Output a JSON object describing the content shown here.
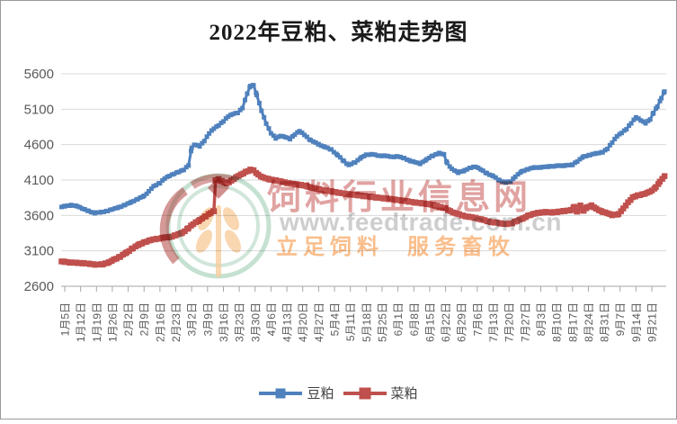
{
  "title": "2022年豆粕、菜粕走势图",
  "watermark": {
    "line1": "饲料行业信息网",
    "line2": "www.feedtrade.com.cn",
    "line3_left": "立足饲料",
    "line3_right": "服务畜牧"
  },
  "colors": {
    "soybean_meal": "#4F81BD",
    "rapeseed_meal": "#C0504D",
    "gridline": "#D9D9D9",
    "axis": "#A6A6A6",
    "axis_text": "#595959",
    "title_text": "#1a1a1a"
  },
  "chart_data": {
    "type": "line",
    "title": "2022年豆粕、菜粕走势图",
    "ylabel": "",
    "xlabel": "",
    "ylim": [
      2600,
      5600
    ],
    "y_ticks": [
      2600,
      3100,
      3600,
      4100,
      4600,
      5100,
      5600
    ],
    "grid": "horizontal",
    "legend_position": "bottom",
    "x_encoding": "weeks_since_first_tick",
    "x_tick_labels": [
      "1月5日",
      "1月12日",
      "1月19日",
      "1月26日",
      "2月2日",
      "2月9日",
      "2月16日",
      "2月23日",
      "3月2日",
      "3月9日",
      "3月16日",
      "3月23日",
      "3月30日",
      "4月6日",
      "4月13日",
      "4月20日",
      "4月27日",
      "5月4日",
      "5月11日",
      "5月18日",
      "5月25日",
      "6月1日",
      "6月8日",
      "6月15日",
      "6月22日",
      "6月29日",
      "7月6日",
      "7月13日",
      "7月20日",
      "7月27日",
      "8月3日",
      "8月10日",
      "8月17日",
      "8月24日",
      "8月31日",
      "9月7日",
      "9月14日",
      "9月21日"
    ],
    "series": [
      {
        "name": "豆粕",
        "color": "#4F81BD",
        "line_width": 3,
        "marker_size": 5,
        "points": [
          [
            -0.2,
            3720
          ],
          [
            0,
            3730
          ],
          [
            0.4,
            3745
          ],
          [
            0.8,
            3730
          ],
          [
            1.1,
            3700
          ],
          [
            1.5,
            3660
          ],
          [
            1.9,
            3635
          ],
          [
            2.3,
            3645
          ],
          [
            2.7,
            3665
          ],
          [
            3,
            3685
          ],
          [
            3.4,
            3715
          ],
          [
            3.8,
            3748
          ],
          [
            4.2,
            3790
          ],
          [
            4.6,
            3830
          ],
          [
            5,
            3875
          ],
          [
            5.3,
            3940
          ],
          [
            5.6,
            4010
          ],
          [
            6,
            4060
          ],
          [
            6.3,
            4120
          ],
          [
            6.6,
            4160
          ],
          [
            6.9,
            4190
          ],
          [
            7.2,
            4215
          ],
          [
            7.5,
            4245
          ],
          [
            7.8,
            4310
          ],
          [
            8,
            4555
          ],
          [
            8.2,
            4600
          ],
          [
            8.5,
            4580
          ],
          [
            8.8,
            4650
          ],
          [
            9.1,
            4760
          ],
          [
            9.4,
            4830
          ],
          [
            9.7,
            4870
          ],
          [
            10,
            4930
          ],
          [
            10.3,
            5000
          ],
          [
            10.6,
            5030
          ],
          [
            10.9,
            5050
          ],
          [
            11.2,
            5120
          ],
          [
            11.5,
            5320
          ],
          [
            11.7,
            5430
          ],
          [
            11.9,
            5440
          ],
          [
            12.1,
            5300
          ],
          [
            12.4,
            5080
          ],
          [
            12.7,
            4900
          ],
          [
            13,
            4760
          ],
          [
            13.3,
            4690
          ],
          [
            13.6,
            4725
          ],
          [
            13.9,
            4705
          ],
          [
            14.2,
            4680
          ],
          [
            14.5,
            4745
          ],
          [
            14.8,
            4790
          ],
          [
            15.1,
            4740
          ],
          [
            15.5,
            4660
          ],
          [
            16,
            4605
          ],
          [
            16.4,
            4565
          ],
          [
            16.8,
            4530
          ],
          [
            17.2,
            4450
          ],
          [
            17.6,
            4365
          ],
          [
            17.9,
            4310
          ],
          [
            18.3,
            4350
          ],
          [
            18.7,
            4420
          ],
          [
            19,
            4455
          ],
          [
            19.4,
            4465
          ],
          [
            19.8,
            4440
          ],
          [
            20.2,
            4445
          ],
          [
            20.6,
            4425
          ],
          [
            21,
            4435
          ],
          [
            21.4,
            4405
          ],
          [
            21.8,
            4370
          ],
          [
            22.1,
            4350
          ],
          [
            22.4,
            4330
          ],
          [
            22.8,
            4390
          ],
          [
            23.2,
            4445
          ],
          [
            23.6,
            4480
          ],
          [
            23.9,
            4460
          ],
          [
            24.1,
            4340
          ],
          [
            24.4,
            4255
          ],
          [
            24.8,
            4205
          ],
          [
            25.2,
            4235
          ],
          [
            25.6,
            4275
          ],
          [
            25.9,
            4290
          ],
          [
            26.2,
            4250
          ],
          [
            26.6,
            4195
          ],
          [
            27,
            4155
          ],
          [
            27.4,
            4095
          ],
          [
            27.8,
            4065
          ],
          [
            28.1,
            4080
          ],
          [
            28.4,
            4150
          ],
          [
            28.8,
            4220
          ],
          [
            29.2,
            4255
          ],
          [
            29.6,
            4275
          ],
          [
            30,
            4280
          ],
          [
            30.5,
            4290
          ],
          [
            31,
            4300
          ],
          [
            31.5,
            4305
          ],
          [
            32,
            4315
          ],
          [
            32.3,
            4365
          ],
          [
            32.7,
            4430
          ],
          [
            33.1,
            4455
          ],
          [
            33.5,
            4475
          ],
          [
            33.9,
            4495
          ],
          [
            34.2,
            4540
          ],
          [
            34.5,
            4630
          ],
          [
            34.8,
            4720
          ],
          [
            35.1,
            4765
          ],
          [
            35.4,
            4820
          ],
          [
            35.7,
            4905
          ],
          [
            36,
            4985
          ],
          [
            36.3,
            4945
          ],
          [
            36.6,
            4905
          ],
          [
            36.9,
            4955
          ],
          [
            37.1,
            5050
          ],
          [
            37.35,
            5140
          ],
          [
            37.6,
            5255
          ],
          [
            37.8,
            5350
          ]
        ]
      },
      {
        "name": "菜粕",
        "color": "#C0504D",
        "line_width": 3.5,
        "marker_size": 6.5,
        "points": [
          [
            -0.2,
            2950
          ],
          [
            0,
            2945
          ],
          [
            0.4,
            2935
          ],
          [
            0.8,
            2930
          ],
          [
            1.2,
            2925
          ],
          [
            1.6,
            2915
          ],
          [
            2,
            2905
          ],
          [
            2.4,
            2910
          ],
          [
            2.8,
            2940
          ],
          [
            3.1,
            2975
          ],
          [
            3.5,
            3020
          ],
          [
            3.9,
            3075
          ],
          [
            4.3,
            3140
          ],
          [
            4.7,
            3190
          ],
          [
            5,
            3220
          ],
          [
            5.4,
            3250
          ],
          [
            5.8,
            3270
          ],
          [
            6.2,
            3285
          ],
          [
            6.6,
            3295
          ],
          [
            7,
            3320
          ],
          [
            7.4,
            3355
          ],
          [
            7.8,
            3420
          ],
          [
            8.1,
            3480
          ],
          [
            8.5,
            3535
          ],
          [
            8.9,
            3590
          ],
          [
            9.2,
            3640
          ],
          [
            9.4,
            3660
          ],
          [
            9.5,
            4090
          ],
          [
            9.7,
            4110
          ],
          [
            9.9,
            4085
          ],
          [
            10.2,
            4050
          ],
          [
            10.5,
            4090
          ],
          [
            10.8,
            4140
          ],
          [
            11.1,
            4175
          ],
          [
            11.4,
            4215
          ],
          [
            11.7,
            4245
          ],
          [
            11.9,
            4235
          ],
          [
            12.2,
            4175
          ],
          [
            12.5,
            4135
          ],
          [
            12.9,
            4110
          ],
          [
            13.3,
            4095
          ],
          [
            13.7,
            4075
          ],
          [
            14.1,
            4055
          ],
          [
            14.5,
            4040
          ],
          [
            14.9,
            4030
          ],
          [
            15.3,
            4010
          ],
          [
            15.7,
            3985
          ],
          [
            16.1,
            3965
          ],
          [
            16.5,
            3950
          ],
          [
            16.9,
            3935
          ],
          [
            17.3,
            3920
          ],
          [
            17.7,
            3905
          ],
          [
            18.1,
            3895
          ],
          [
            18.5,
            3885
          ],
          [
            18.9,
            3872
          ],
          [
            19.3,
            3862
          ],
          [
            19.7,
            3852
          ],
          [
            20.1,
            3842
          ],
          [
            20.5,
            3832
          ],
          [
            20.9,
            3820
          ],
          [
            21.3,
            3808
          ],
          [
            21.7,
            3795
          ],
          [
            22.1,
            3782
          ],
          [
            22.5,
            3772
          ],
          [
            22.9,
            3762
          ],
          [
            23.3,
            3742
          ],
          [
            23.7,
            3718
          ],
          [
            24,
            3698
          ],
          [
            24.3,
            3660
          ],
          [
            24.7,
            3625
          ],
          [
            25.1,
            3598
          ],
          [
            25.5,
            3578
          ],
          [
            25.9,
            3565
          ],
          [
            26.3,
            3540
          ],
          [
            26.7,
            3515
          ],
          [
            27.1,
            3498
          ],
          [
            27.5,
            3488
          ],
          [
            27.9,
            3478
          ],
          [
            28.2,
            3492
          ],
          [
            28.5,
            3525
          ],
          [
            28.9,
            3558
          ],
          [
            29.2,
            3598
          ],
          [
            29.5,
            3618
          ],
          [
            29.9,
            3638
          ],
          [
            30.3,
            3648
          ],
          [
            30.7,
            3642
          ],
          [
            31.1,
            3652
          ],
          [
            31.5,
            3662
          ],
          [
            31.9,
            3676
          ],
          [
            32.1,
            3718
          ],
          [
            32.3,
            3652
          ],
          [
            32.5,
            3738
          ],
          [
            32.7,
            3662
          ],
          [
            32.9,
            3715
          ],
          [
            33.2,
            3740
          ],
          [
            33.5,
            3692
          ],
          [
            33.9,
            3652
          ],
          [
            34.2,
            3630
          ],
          [
            34.5,
            3605
          ],
          [
            34.9,
            3618
          ],
          [
            35.2,
            3695
          ],
          [
            35.5,
            3785
          ],
          [
            35.8,
            3855
          ],
          [
            36.1,
            3880
          ],
          [
            36.4,
            3898
          ],
          [
            36.7,
            3918
          ],
          [
            37,
            3948
          ],
          [
            37.25,
            4000
          ],
          [
            37.5,
            4075
          ],
          [
            37.8,
            4155
          ]
        ]
      }
    ]
  }
}
